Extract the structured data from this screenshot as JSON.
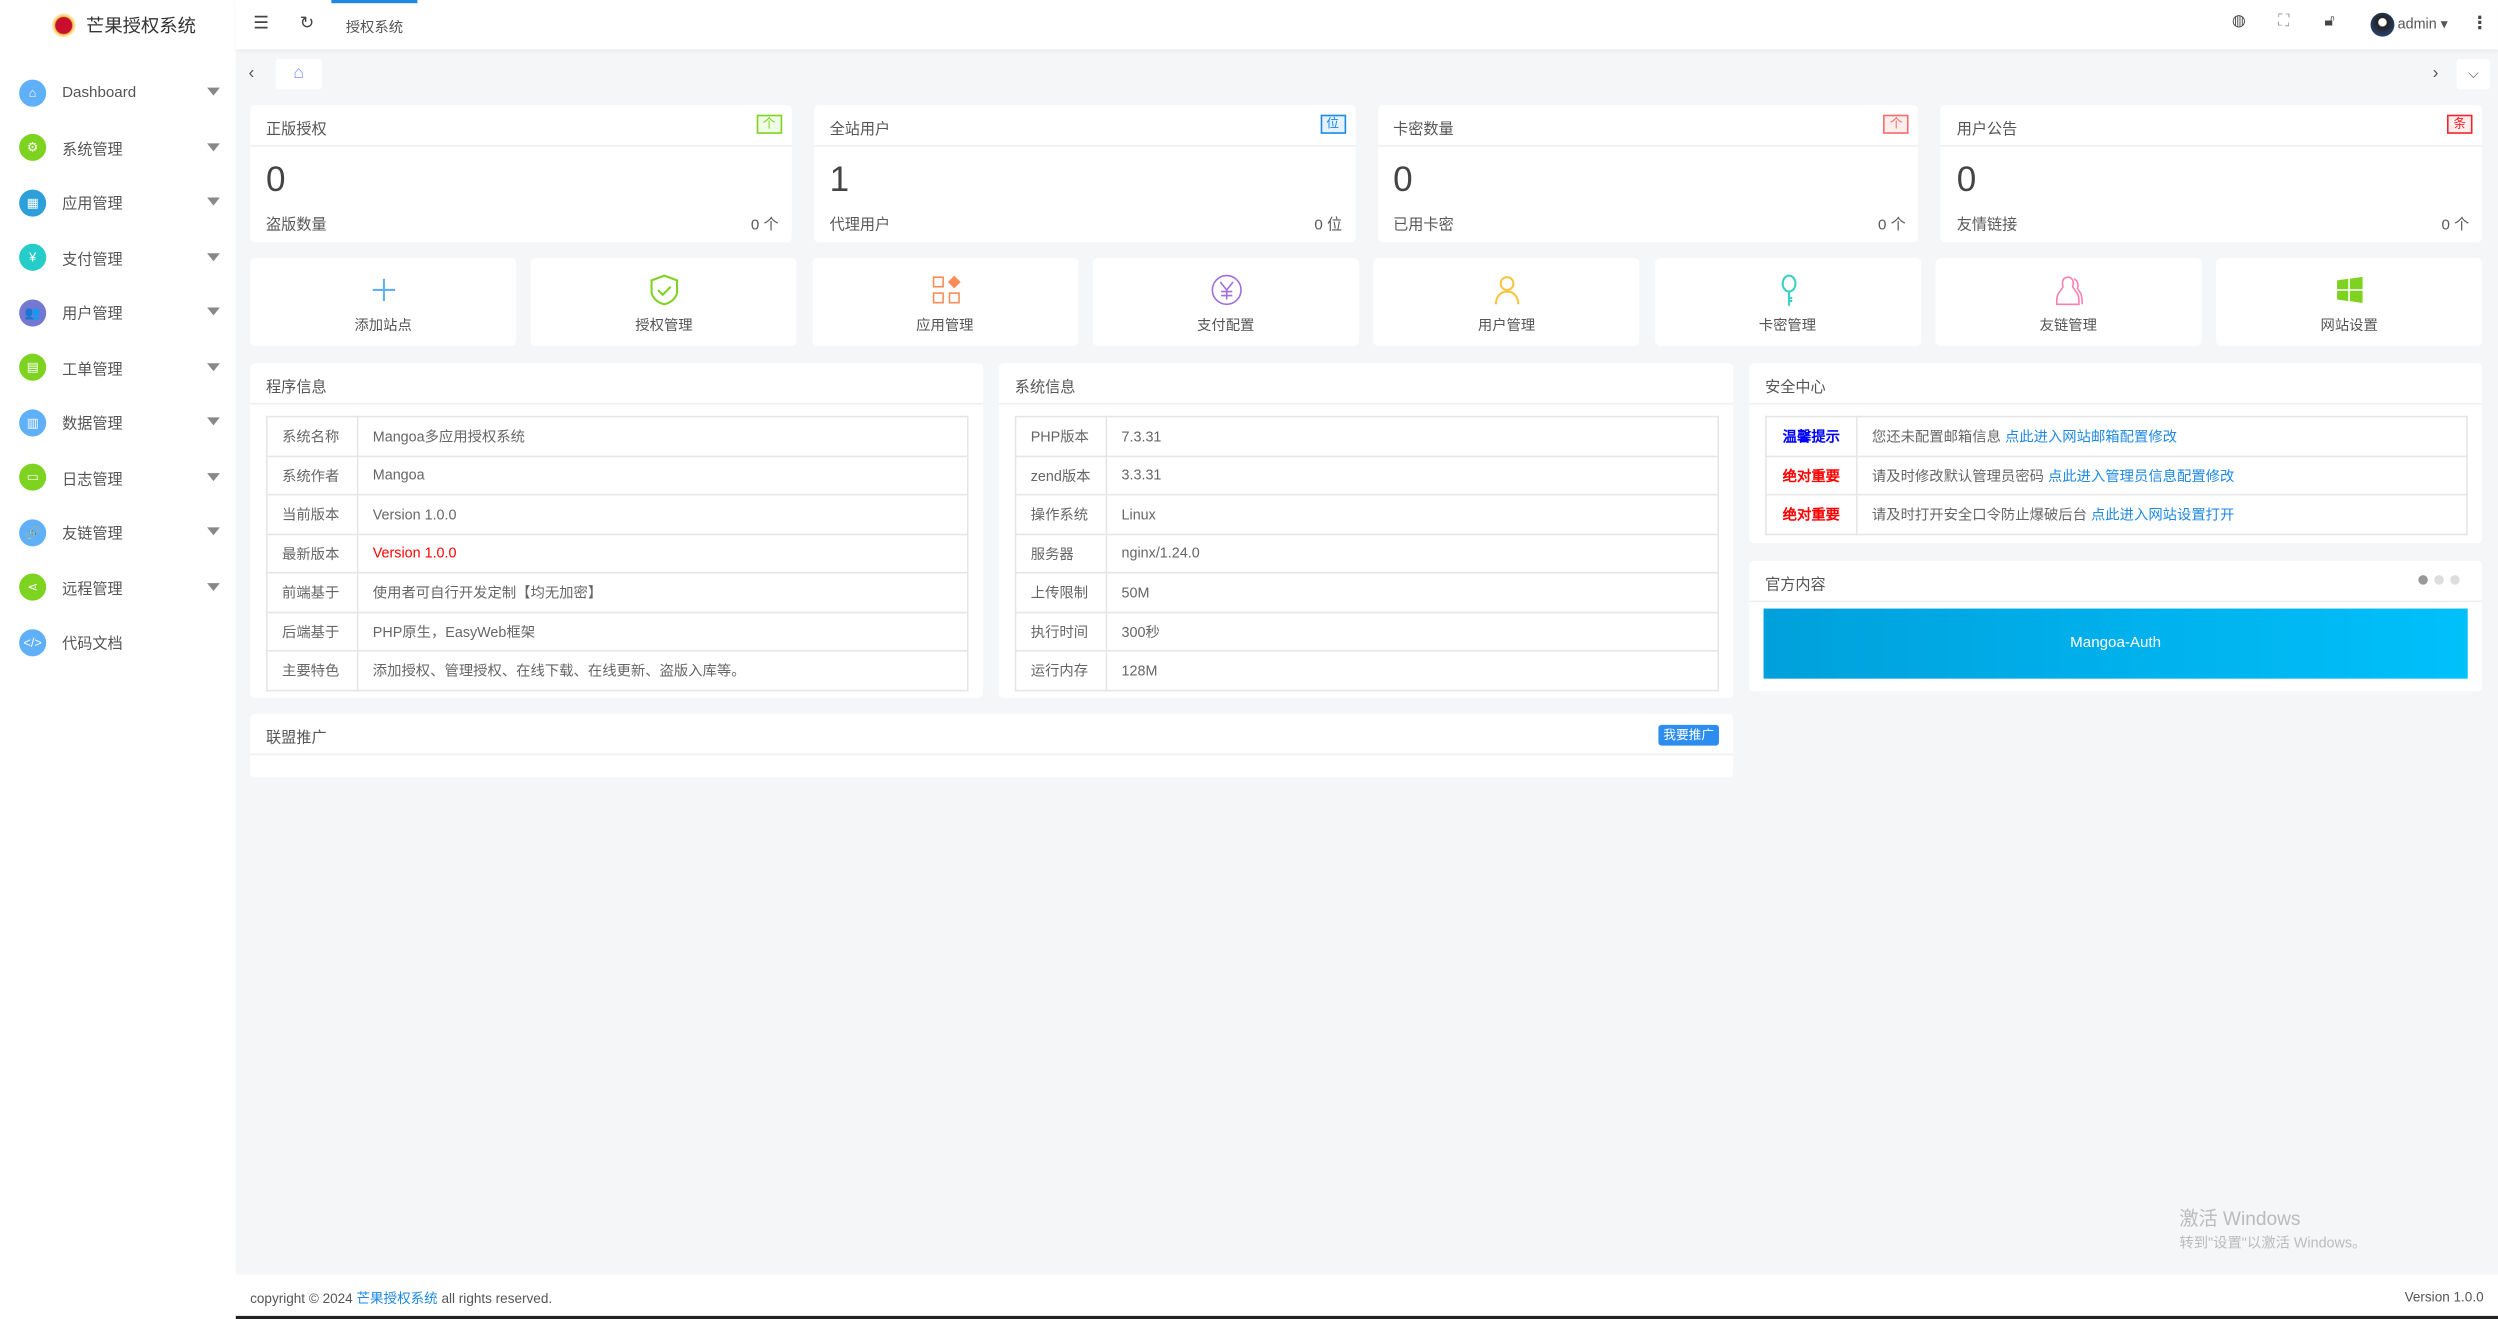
{
  "app": {
    "title": "芒果授权系统"
  },
  "sidebar": {
    "items": [
      {
        "label": "Dashboard",
        "icon": "home-icon",
        "color": "#5fb0f8",
        "sym": "⌂",
        "caret": true
      },
      {
        "label": "系统管理",
        "icon": "gear-icon",
        "color": "#7ed321",
        "sym": "⚙",
        "caret": true
      },
      {
        "label": "应用管理",
        "icon": "apps-icon",
        "color": "#2d9fd9",
        "sym": "▦",
        "caret": true
      },
      {
        "label": "支付管理",
        "icon": "yen-icon",
        "color": "#26cdc8",
        "sym": "¥",
        "caret": true
      },
      {
        "label": "用户管理",
        "icon": "users-icon",
        "color": "#7378d1",
        "sym": "👥",
        "caret": true
      },
      {
        "label": "工单管理",
        "icon": "clipboard-icon",
        "color": "#7ed321",
        "sym": "▤",
        "caret": true
      },
      {
        "label": "数据管理",
        "icon": "data-icon",
        "color": "#5fb0f8",
        "sym": "▥",
        "caret": true
      },
      {
        "label": "日志管理",
        "icon": "log-icon",
        "color": "#7ed321",
        "sym": "▭",
        "caret": true
      },
      {
        "label": "友链管理",
        "icon": "link-icon",
        "color": "#5fb0f8",
        "sym": "🔗",
        "caret": true
      },
      {
        "label": "远程管理",
        "icon": "share-icon",
        "color": "#7ed321",
        "sym": "⋖",
        "caret": true
      },
      {
        "label": "代码文档",
        "icon": "code-icon",
        "color": "#5fb0f8",
        "sym": "</>",
        "caret": false
      }
    ]
  },
  "header": {
    "tab": "授权系统",
    "user": "admin"
  },
  "stats": [
    {
      "title": "正版授权",
      "badge": "个",
      "badge_color": "#7ed321",
      "badge_bg": "#f0fbe6",
      "value": "0",
      "sub": "盗版数量",
      "sub_value": "0 个"
    },
    {
      "title": "全站用户",
      "badge": "位",
      "badge_color": "#1e88e5",
      "badge_bg": "#e3f2fd",
      "value": "1",
      "sub": "代理用户",
      "sub_value": "0 位"
    },
    {
      "title": "卡密数量",
      "badge": "个",
      "badge_color": "#f56c6c",
      "badge_bg": "#fdeeee",
      "value": "0",
      "sub": "已用卡密",
      "sub_value": "0 个"
    },
    {
      "title": "用户公告",
      "badge": "条",
      "badge_color": "#f5222d",
      "badge_bg": "#fdeeee",
      "value": "0",
      "sub": "友情链接",
      "sub_value": "0 个"
    }
  ],
  "quick": [
    {
      "label": "添加站点",
      "icon": "plus-icon",
      "color": "#5fb0f8"
    },
    {
      "label": "授权管理",
      "icon": "shield-check-icon",
      "color": "#7ed321"
    },
    {
      "label": "应用管理",
      "icon": "apps-icon",
      "color": "#fb8c56"
    },
    {
      "label": "支付配置",
      "icon": "yen-circle-icon",
      "color": "#a06ee1"
    },
    {
      "label": "用户管理",
      "icon": "user-icon",
      "color": "#f9c440"
    },
    {
      "label": "卡密管理",
      "icon": "key-icon",
      "color": "#38d1c5"
    },
    {
      "label": "友链管理",
      "icon": "friends-icon",
      "color": "#ff7eb0"
    },
    {
      "label": "网站设置",
      "icon": "windows-icon",
      "color": "#7ed321"
    }
  ],
  "program": {
    "title": "程序信息",
    "rows": [
      {
        "k": "系统名称",
        "v": "Mangoa多应用授权系统"
      },
      {
        "k": "系统作者",
        "v": "Mangoa"
      },
      {
        "k": "当前版本",
        "v": "Version 1.0.0"
      },
      {
        "k": "最新版本",
        "v": "Version 1.0.0",
        "red": true
      },
      {
        "k": "前端基于",
        "v": "使用者可自行开发定制【均无加密】"
      },
      {
        "k": "后端基于",
        "v": "PHP原生，EasyWeb框架"
      },
      {
        "k": "主要特色",
        "v": "添加授权、管理授权、在线下载、在线更新、盗版入库等。"
      }
    ]
  },
  "system": {
    "title": "系统信息",
    "rows": [
      {
        "k": "PHP版本",
        "v": "7.3.31"
      },
      {
        "k": "zend版本",
        "v": "3.3.31"
      },
      {
        "k": "操作系统",
        "v": "Linux"
      },
      {
        "k": "服务器",
        "v": "nginx/1.24.0"
      },
      {
        "k": "上传限制",
        "v": "50M"
      },
      {
        "k": "执行时间",
        "v": "300秒"
      },
      {
        "k": "运行内存",
        "v": "128M"
      }
    ]
  },
  "security": {
    "title": "安全中心",
    "rows": [
      {
        "level": "温馨提示",
        "color": "#0000ff",
        "text": "您还未配置邮箱信息 ",
        "link": "点此进入网站邮箱配置修改"
      },
      {
        "level": "绝对重要",
        "color": "#ff0000",
        "text": "请及时修改默认管理员密码 ",
        "link": "点此进入管理员信息配置修改"
      },
      {
        "level": "绝对重要",
        "color": "#ff0000",
        "text": "请及时打开安全口令防止爆破后台 ",
        "link": "点此进入网站设置打开"
      }
    ]
  },
  "official": {
    "title": "官方内容",
    "banner": "Mangoa-Auth"
  },
  "alliance": {
    "title": "联盟推广",
    "button": "我要推广"
  },
  "footer": {
    "prefix": "copyright © 2024 ",
    "link": "芒果授权系统",
    "suffix": " all rights reserved.",
    "version": "Version 1.0.0"
  },
  "watermark": {
    "line1": "激活 Windows",
    "line2": "转到\"设置\"以激活 Windows。"
  }
}
